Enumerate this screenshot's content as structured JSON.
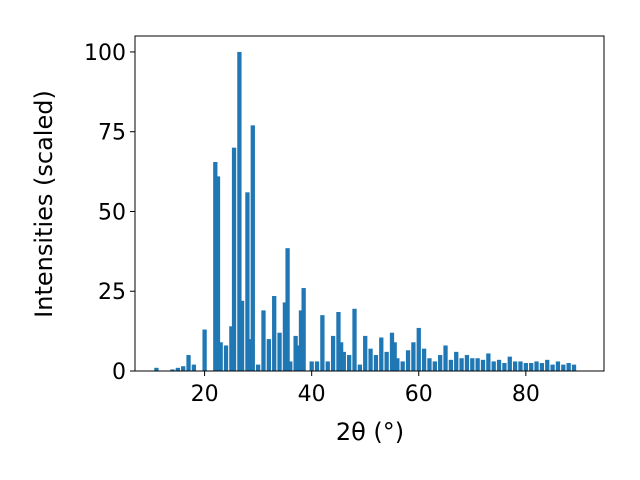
{
  "chart_data": {
    "type": "bar",
    "xlabel": "2θ (°)",
    "ylabel": "Intensities (scaled)",
    "color": "#1f77b4",
    "xlim": [
      7,
      94.6
    ],
    "ylim": [
      0,
      105
    ],
    "xticks": [
      20,
      40,
      60,
      80
    ],
    "yticks": [
      0,
      25,
      50,
      75,
      100
    ],
    "x": [
      11,
      14,
      15,
      16,
      17,
      18,
      20,
      22,
      22.5,
      23,
      24,
      25,
      25.5,
      26.5,
      27,
      28,
      28.5,
      29,
      30,
      31,
      32,
      33,
      34,
      35,
      35.5,
      36,
      37,
      37.5,
      38,
      38.5,
      40,
      41,
      42,
      43,
      44,
      45,
      45.5,
      46,
      47,
      48,
      49,
      50,
      51,
      52,
      53,
      54,
      55,
      55.5,
      56,
      57,
      58,
      59,
      60,
      61,
      62,
      63,
      64,
      65,
      66,
      67,
      68,
      69,
      70,
      71,
      72,
      73,
      74,
      75,
      76,
      77,
      78,
      79,
      80,
      81,
      82,
      83,
      84,
      85,
      86,
      87,
      88,
      89
    ],
    "values": [
      1,
      0.5,
      1,
      1.5,
      5,
      2,
      13,
      65.5,
      61,
      9,
      8,
      14,
      70,
      100,
      22,
      56,
      10,
      77,
      2,
      19,
      10,
      23.5,
      12,
      21.5,
      38.5,
      3,
      11,
      8,
      19,
      26,
      3,
      3,
      17.5,
      3,
      11,
      18.5,
      9,
      6,
      5,
      19.5,
      2,
      11,
      7,
      5,
      10.5,
      6,
      12,
      9,
      4,
      3,
      6.5,
      9,
      13.5,
      7,
      4,
      3,
      5,
      8,
      3.5,
      6,
      4,
      5,
      4,
      4,
      3.5,
      5.5,
      3,
      3.5,
      2.5,
      4.5,
      3,
      3,
      2.5,
      2.5,
      3,
      2.5,
      3.5,
      2,
      3,
      2,
      2.5,
      2
    ]
  }
}
